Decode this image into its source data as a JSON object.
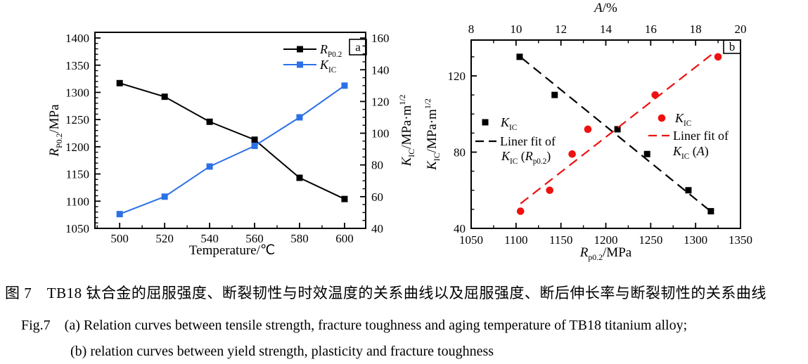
{
  "page": {
    "background": "#ffffff"
  },
  "colors": {
    "black": "#000000",
    "blue": "#2c70e8",
    "red": "#ee1111"
  },
  "caption": {
    "cn": "图 7　TB18 钛合金的屈服强度、断裂韧性与时效温度的关系曲线以及屈服强度、断后伸长率与断裂韧性的关系曲线",
    "en1": "Fig.7    (a) Relation curves between tensile strength, fracture toughness and aging temperature of TB18 titanium alloy;",
    "en2": "(b) relation curves between yield strength, plasticity and fracture toughness"
  },
  "chart_data": [
    {
      "id": "a",
      "type": "line",
      "panel_label": "a",
      "xlabel": "Temperature/℃",
      "xlim": [
        489,
        609.4
      ],
      "xticks": [
        500,
        520,
        540,
        560,
        580,
        600
      ],
      "x_minor_step": 10,
      "x": [
        500,
        520,
        540,
        560,
        580,
        600
      ],
      "y_left": {
        "label_parts": [
          {
            "t": "R",
            "i": true
          },
          {
            "t": "P0.2",
            "sub": true
          },
          {
            "t": "/MPa"
          }
        ],
        "lim": [
          1050,
          1410.4
        ],
        "ticks": [
          1050,
          1100,
          1150,
          1200,
          1250,
          1300,
          1350,
          1400
        ],
        "minor_step": 10
      },
      "y_right": {
        "label_parts": [
          {
            "t": "K",
            "i": true
          },
          {
            "t": "IC",
            "sub": true
          },
          {
            "t": "/MPa·m"
          },
          {
            "t": "1/2",
            "sup": true
          }
        ],
        "lim": [
          40,
          163.6
        ],
        "ticks": [
          40,
          60,
          80,
          100,
          120,
          140,
          160
        ],
        "minor_step": 5
      },
      "series": [
        {
          "key": "Rp02",
          "axis": "left",
          "color": "#000000",
          "marker": "square",
          "legend_parts": [
            {
              "t": "R",
              "i": true
            },
            {
              "t": "P0.2",
              "sub": true
            }
          ],
          "values": [
            1317,
            1292,
            1246,
            1213,
            1143,
            1104
          ]
        },
        {
          "key": "KIC",
          "axis": "right",
          "color": "#2c70e8",
          "marker": "square",
          "legend_parts": [
            {
              "t": "K",
              "i": true
            },
            {
              "t": "IC",
              "sub": true
            }
          ],
          "values": [
            49,
            60,
            79,
            92,
            110,
            130
          ]
        }
      ]
    },
    {
      "id": "b",
      "type": "scatter",
      "panel_label": "b",
      "x_bottom": {
        "label_parts": [
          {
            "t": "R",
            "i": true
          },
          {
            "t": "p0.2",
            "sub": true
          },
          {
            "t": "/MPa"
          }
        ],
        "lim": [
          1050,
          1350
        ],
        "ticks": [
          1050,
          1100,
          1150,
          1200,
          1250,
          1300,
          1350
        ],
        "minor_step": 25
      },
      "x_top": {
        "label_parts": [
          {
            "t": "A",
            "i": true
          },
          {
            "t": "/%"
          }
        ],
        "lim": [
          8,
          20
        ],
        "ticks": [
          8,
          10,
          12,
          14,
          16,
          18,
          20
        ],
        "minor_step": 1
      },
      "y": {
        "label_parts": [
          {
            "t": "K",
            "i": true
          },
          {
            "t": "IC",
            "sub": true
          },
          {
            "t": "/MPa·m"
          },
          {
            "t": "1/2",
            "sup": true
          }
        ],
        "lim": [
          40,
          138.8
        ],
        "ticks": [
          40,
          80,
          120
        ],
        "minor_step": 10
      },
      "series": [
        {
          "key": "KIC_vs_Rp02",
          "axis": "bottom",
          "color": "#000000",
          "marker": "square",
          "points": [
            [
              1104,
              130
            ],
            [
              1143,
              110
            ],
            [
              1213,
              92
            ],
            [
              1246,
              79
            ],
            [
              1292,
              60
            ],
            [
              1317,
              49
            ]
          ],
          "fit": {
            "from": [
              1106,
              129.5
            ],
            "to": [
              1318,
              48.5
            ]
          },
          "legend": {
            "symbol_parts": [
              {
                "t": "K",
                "i": true
              },
              {
                "t": "IC",
                "sub": true
              }
            ],
            "fit_text": "Liner fit of",
            "fit_arg_parts": [
              {
                "t": "K",
                "i": true
              },
              {
                "t": "IC",
                "sub": true
              },
              {
                "t": " ("
              },
              {
                "t": "R",
                "i": true
              },
              {
                "t": "p0.2",
                "sub": true
              },
              {
                "t": ")"
              }
            ]
          }
        },
        {
          "key": "KIC_vs_A",
          "axis": "top",
          "color": "#ee1111",
          "marker": "circle",
          "points": [
            [
              10.2,
              49
            ],
            [
              11.5,
              60
            ],
            [
              12.5,
              79
            ],
            [
              13.2,
              92
            ],
            [
              16.2,
              110
            ],
            [
              19.0,
              130
            ]
          ],
          "fit": {
            "from": [
              10.2,
              53
            ],
            "to": [
              18.8,
              132
            ]
          },
          "legend": {
            "symbol_parts": [
              {
                "t": "K",
                "i": true
              },
              {
                "t": "IC",
                "sub": true
              }
            ],
            "fit_text": "Liner fit of",
            "fit_arg_parts": [
              {
                "t": "K",
                "i": true
              },
              {
                "t": "IC",
                "sub": true
              },
              {
                "t": " ("
              },
              {
                "t": "A",
                "i": true
              },
              {
                "t": ")"
              }
            ]
          }
        }
      ]
    }
  ]
}
